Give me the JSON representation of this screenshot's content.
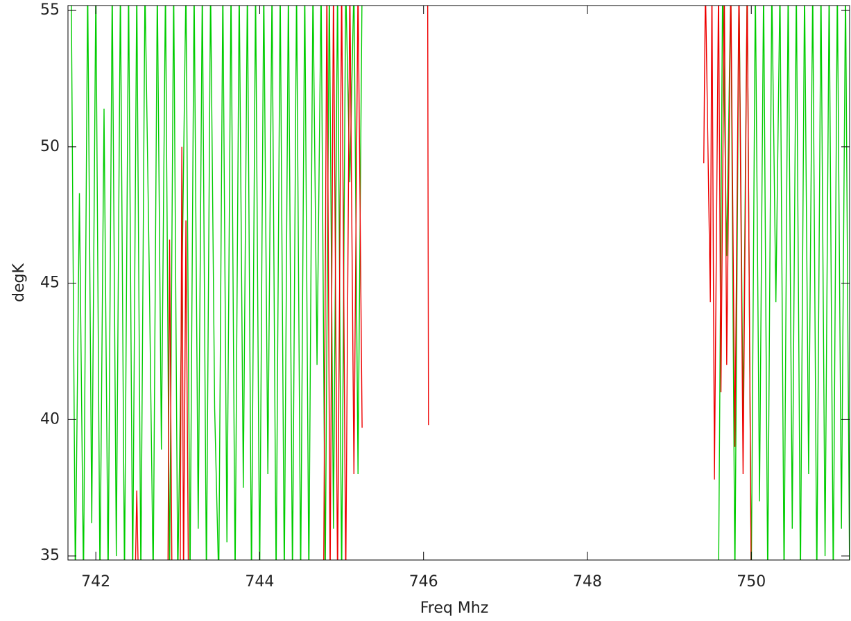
{
  "chart_data": {
    "type": "line",
    "xlabel": "Freq Mhz",
    "ylabel": "degK",
    "xlim": [
      741.66,
      751.2
    ],
    "xticks": [
      742,
      744,
      746,
      748,
      750
    ],
    "ylim": [
      34.85,
      55.18
    ],
    "yticks": [
      35,
      40,
      45,
      50,
      55
    ],
    "series": [
      {
        "color": "#00cc00",
        "x": [
          741.7,
          741.75,
          741.8,
          741.85,
          741.9,
          741.95,
          742.0,
          742.05,
          742.1,
          742.15,
          742.2,
          742.25,
          742.3,
          742.35,
          742.4,
          742.45,
          742.5,
          742.55,
          742.6,
          742.65,
          742.7,
          742.75,
          742.8,
          742.85,
          742.9,
          742.95,
          743.0,
          743.05,
          743.1,
          743.15,
          743.2,
          743.25,
          743.3,
          743.35,
          743.4,
          743.45,
          743.5,
          743.55,
          743.6,
          743.65,
          743.7,
          743.75,
          743.8,
          743.85,
          743.9,
          743.95,
          744.0,
          744.05,
          744.1,
          744.15,
          744.2,
          744.25,
          744.3,
          744.35,
          744.4,
          744.45,
          744.5,
          744.55,
          744.6,
          744.65,
          744.7,
          744.75,
          744.8,
          744.85,
          744.9,
          744.95,
          745.0,
          745.05,
          745.1,
          745.15,
          745.2,
          745.25,
          747.5,
          749.6,
          749.65,
          749.7,
          749.75,
          749.8,
          749.85,
          749.9,
          749.95,
          750.0,
          750.05,
          750.1,
          750.15,
          750.2,
          750.25,
          750.3,
          750.35,
          750.4,
          750.45,
          750.5,
          750.55,
          750.6,
          750.65,
          750.7,
          750.75,
          750.8,
          750.85,
          750.9,
          750.95,
          751.0,
          751.05,
          751.1,
          751.15,
          751.2
        ],
        "values": [
          56,
          34,
          48.3,
          34,
          56,
          36.2,
          56,
          34,
          51.4,
          34,
          56,
          35,
          56,
          34,
          56,
          34,
          56,
          34,
          56,
          45.8,
          34,
          56,
          38.9,
          56,
          34,
          56,
          34,
          44.5,
          56,
          34,
          56,
          36,
          56,
          34,
          56,
          40.4,
          34,
          56,
          35.5,
          56,
          34,
          56,
          37.5,
          56,
          34,
          56,
          34,
          56,
          38,
          56,
          34,
          56,
          34,
          56,
          34,
          56,
          34,
          56,
          34,
          56,
          42,
          56,
          34,
          56,
          36,
          56,
          34,
          56,
          48.7,
          56,
          38,
          56,
          null,
          34,
          56,
          46,
          56,
          34,
          56,
          40,
          56,
          34,
          56,
          37,
          56,
          34,
          56,
          44.3,
          56,
          34,
          56,
          36,
          56,
          34,
          56,
          38,
          56,
          34,
          56,
          35,
          56,
          34,
          56,
          36,
          56,
          34
        ]
      },
      {
        "color": "#ee0000",
        "x": [
          742.48,
          742.5,
          742.52,
          742.7,
          742.88,
          742.9,
          742.93,
          743.03,
          743.05,
          743.07,
          743.1,
          743.13,
          744.0,
          744.78,
          744.82,
          744.86,
          744.9,
          744.95,
          745.0,
          745.05,
          745.1,
          745.15,
          745.2,
          745.25,
          745.6,
          746.05,
          746.06,
          748.0,
          749.42,
          749.44,
          749.5,
          749.52,
          749.55,
          749.6,
          749.63,
          749.67,
          749.7,
          749.75,
          749.8,
          749.85,
          749.9,
          749.95,
          750.0
        ],
        "values": [
          34,
          37.4,
          34,
          null,
          34,
          46.6,
          34,
          34,
          50,
          34,
          47.3,
          34,
          null,
          34,
          56,
          34,
          56,
          34,
          56,
          34,
          56,
          38,
          56,
          39.7,
          null,
          56,
          39.8,
          null,
          49.4,
          56,
          44.3,
          56,
          37.8,
          56,
          41,
          56,
          42,
          56,
          39,
          56,
          38,
          56,
          34
        ]
      }
    ]
  }
}
